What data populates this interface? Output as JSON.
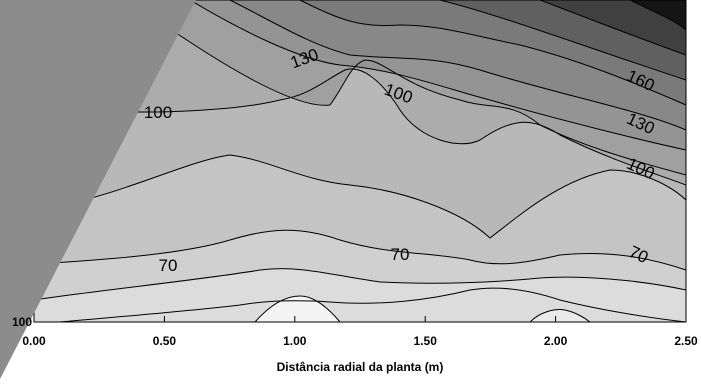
{
  "chart_data": {
    "type": "heatmap",
    "subtype": "filled-contour",
    "title": "",
    "xlabel": "Distância radial da planta (m)",
    "ylabel": "",
    "xlim": [
      0,
      2.5
    ],
    "x_ticks": [
      "0.00",
      "0.50",
      "1.00",
      "1.50",
      "2.00",
      "2.50"
    ],
    "y_tick_labels_visible": [
      "100"
    ],
    "grid": false,
    "contour_interval": 10,
    "colormap": {
      "low": "#f2f2f2",
      "high": "#0d0d0d"
    },
    "labeled_contours": [
      {
        "level": "130",
        "x": 1.03
      },
      {
        "level": "100",
        "x": 1.33
      },
      {
        "level": "160",
        "x": 2.36
      },
      {
        "level": "130",
        "x": 2.36
      },
      {
        "level": "100",
        "x": 2.36
      },
      {
        "level": "100",
        "x": 0.45
      },
      {
        "level": "70",
        "x": 0.5
      },
      {
        "level": "70",
        "x": 1.45
      },
      {
        "level": "70",
        "x": 2.36
      }
    ],
    "overlay": {
      "description": "gray triangular occlusion covering the upper-left corner",
      "color": "#8c8c8c"
    }
  }
}
